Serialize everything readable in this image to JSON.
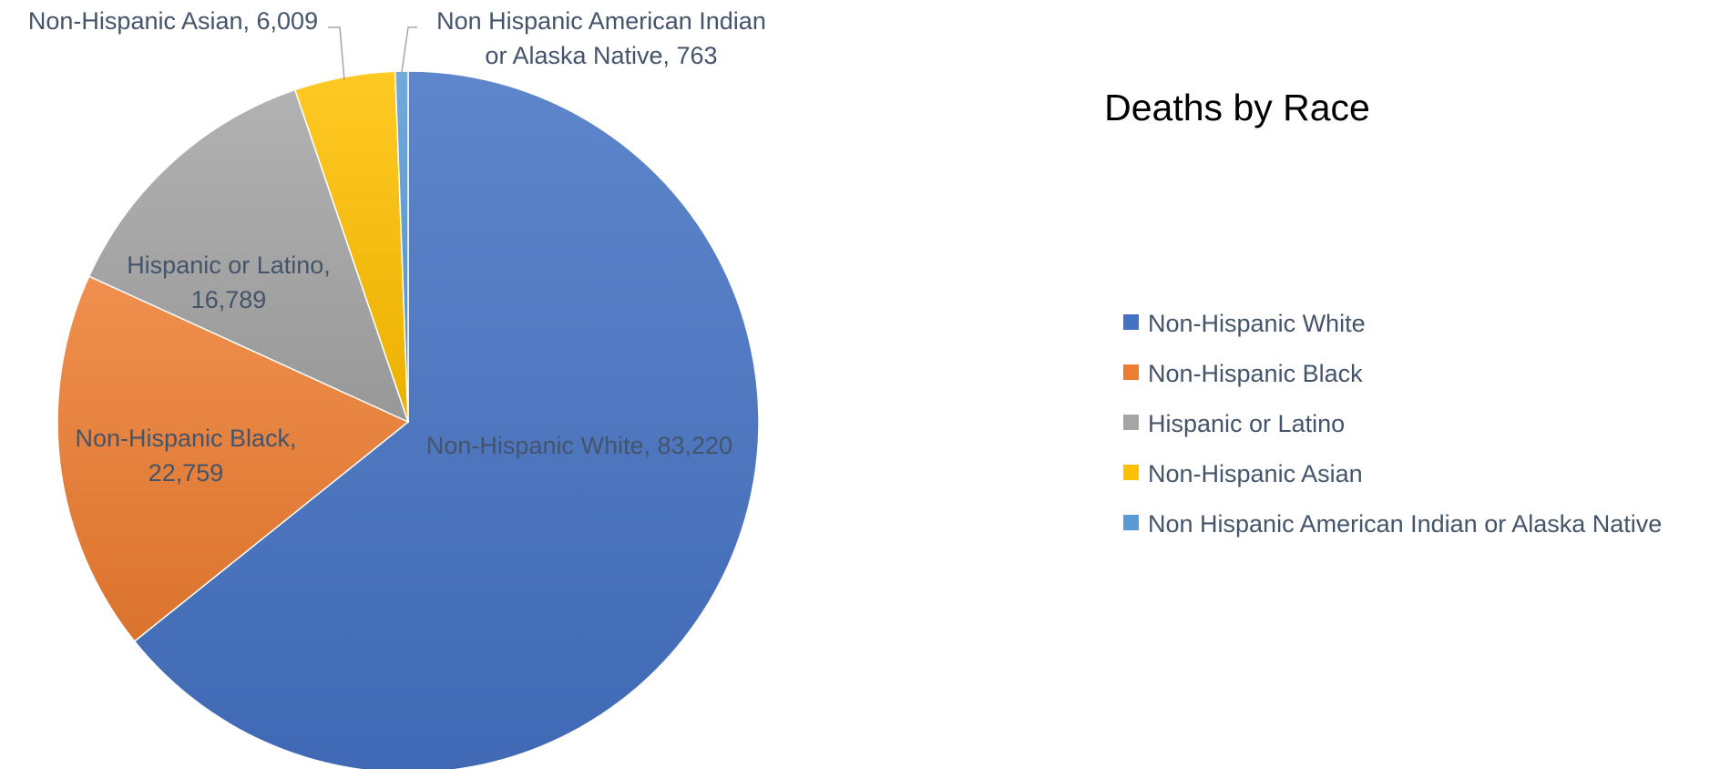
{
  "chart_data": {
    "type": "pie",
    "title": "Deaths by Race",
    "legend_position": "right",
    "slices": [
      {
        "label": "Non-Hispanic White",
        "value": 83220,
        "value_label": "83,220",
        "color": "#4472c4",
        "data_label": [
          "Non-Hispanic White, 83,220"
        ]
      },
      {
        "label": "Non-Hispanic Black",
        "value": 22759,
        "value_label": "22,759",
        "color": "#ed7d31",
        "data_label": [
          "Non-Hispanic Black,",
          "22,759"
        ]
      },
      {
        "label": "Hispanic or Latino",
        "value": 16789,
        "value_label": "16,789",
        "color": "#a5a5a5",
        "data_label": [
          "Hispanic or Latino,",
          "16,789"
        ]
      },
      {
        "label": "Non-Hispanic Asian",
        "value": 6009,
        "value_label": "6,009",
        "color": "#ffc000",
        "data_label": [
          "Non-Hispanic Asian, 6,009"
        ]
      },
      {
        "label": "Non Hispanic American Indian or Alaska Native",
        "value": 763,
        "value_label": "763",
        "color": "#5b9bd5",
        "data_label": [
          "Non Hispanic American Indian",
          "or Alaska Native, 763"
        ]
      }
    ]
  }
}
